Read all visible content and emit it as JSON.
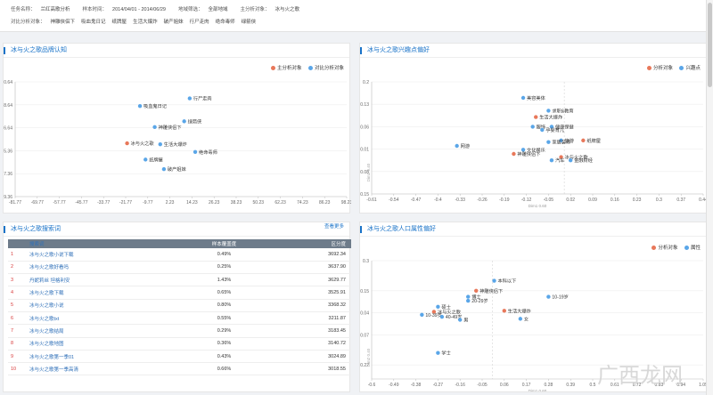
{
  "filters": {
    "row1": [
      {
        "label": "任务名称：",
        "value": "兰红高歌分析"
      },
      {
        "label": "样本时间：",
        "value": "2014/04/01 - 2014/06/29"
      },
      {
        "label": "地域筛选：",
        "value": "全部地域"
      },
      {
        "label": "主分析对象：",
        "value": "冰与火之歌"
      }
    ],
    "row2_label": "对比分析对象：",
    "row2": [
      "神雕侠侣下",
      "吸血鬼日记",
      "纸牌屋",
      "生活大爆炸",
      "破产姐妹",
      "行尸走肉",
      "绝命毒师",
      "绿箭侠"
    ]
  },
  "colors": {
    "main": "#e8785a",
    "compare": "#5aa6e8",
    "accent": "#1a73c8"
  },
  "panels": {
    "brand": {
      "title": "冰与火之歌品牌认知",
      "legend": [
        "主分析对象",
        "对比分析对象"
      ]
    },
    "interest": {
      "title": "冰与火之歌兴趣点偏好",
      "legend": [
        "分析对象",
        "兴趣点"
      ],
      "axis_label": "Dim1 0.60",
      "yaxis_label": "Dim2 0.40"
    },
    "search": {
      "title": "冰与火之歌搜索词",
      "more": "查看更多",
      "headers": [
        "",
        "搜索词",
        "样本覆盖度",
        "区分度"
      ],
      "rows": [
        {
          "idx": "1",
          "kw": "冰与火之歌小说下载",
          "pct": "0.49%",
          "val": "3692.34"
        },
        {
          "idx": "2",
          "kw": "冰与火之歌好看吗",
          "pct": "0.25%",
          "val": "3637.90"
        },
        {
          "idx": "3",
          "kw": "丹妮莉丝 坦格利安",
          "pct": "1.43%",
          "val": "3629.77"
        },
        {
          "idx": "4",
          "kw": "冰与火之歌下载",
          "pct": "0.65%",
          "val": "3525.91"
        },
        {
          "idx": "5",
          "kw": "冰与火之歌小说",
          "pct": "0.80%",
          "val": "3368.32"
        },
        {
          "idx": "6",
          "kw": "冰与火之歌txt",
          "pct": "0.55%",
          "val": "3211.87"
        },
        {
          "idx": "7",
          "kw": "冰与火之歌结局",
          "pct": "0.29%",
          "val": "3183.45"
        },
        {
          "idx": "8",
          "kw": "冰与火之歌地图",
          "pct": "0.36%",
          "val": "3140.72"
        },
        {
          "idx": "9",
          "kw": "冰与火之歌第一季01",
          "pct": "0.43%",
          "val": "3024.89"
        },
        {
          "idx": "10",
          "kw": "冰与火之歌第一季高清",
          "pct": "0.66%",
          "val": "3018.55"
        }
      ]
    },
    "demo": {
      "title": "冰与火之歌人口属性偏好",
      "legend": [
        "分析对象",
        "属性"
      ],
      "axis_label": "Dim1 0.60",
      "yaxis_label": "Dim2 0.40"
    }
  },
  "watermark": "广西龙网",
  "chart_data": [
    {
      "type": "scatter",
      "xlim": [
        -81.77,
        98.23
      ],
      "ylim": [
        -29.36,
        30.64
      ],
      "x_ticks": [
        "-81.77",
        "-69.77",
        "-57.77",
        "-45.77",
        "-33.77",
        "-21.77",
        "-9.77",
        "2.23",
        "14.23",
        "26.23",
        "38.23",
        "50.23",
        "62.23",
        "74.23",
        "86.23",
        "98.23"
      ],
      "y_ticks": [
        "30.64",
        "18.64",
        "6.64",
        "-5.36",
        "-17.36",
        "-29.36"
      ],
      "points": [
        {
          "label": "冰与火之歌",
          "x": -21,
          "y": -1.5,
          "group": "main"
        },
        {
          "label": "行尸走肉",
          "x": 13,
          "y": 22,
          "group": "compare"
        },
        {
          "label": "吸血鬼日记",
          "x": -14,
          "y": 18,
          "group": "compare"
        },
        {
          "label": "绿箭侠",
          "x": 10,
          "y": 10,
          "group": "compare"
        },
        {
          "label": "神雕侠侣下",
          "x": -6,
          "y": 7,
          "group": "compare"
        },
        {
          "label": "生活大爆炸",
          "x": -3,
          "y": -2,
          "group": "compare"
        },
        {
          "label": "绝命毒师",
          "x": 16,
          "y": -6,
          "group": "compare"
        },
        {
          "label": "纸牌屋",
          "x": -11,
          "y": -10,
          "group": "compare"
        },
        {
          "label": "破产姐妹",
          "x": -1,
          "y": -15,
          "group": "compare"
        }
      ]
    },
    {
      "type": "scatter",
      "xlim": [
        -0.61,
        0.44
      ],
      "ylim": [
        -0.15,
        0.2
      ],
      "x_ticks": [
        "-0.61",
        "-0.54",
        "-0.47",
        "-0.4",
        "-0.33",
        "-0.26",
        "-0.19",
        "-0.12",
        "-0.05",
        "0.02",
        "0.09",
        "0.16",
        "0.23",
        "0.3",
        "0.37",
        "0.44"
      ],
      "y_ticks": [
        "0.2",
        "0.13",
        "0.06",
        "-0.01",
        "-0.08",
        "-0.15"
      ],
      "points": [
        {
          "label": "美容美体",
          "x": -0.13,
          "y": 0.15,
          "group": "compare"
        },
        {
          "label": "求职&教育",
          "x": -0.05,
          "y": 0.11,
          "group": "compare"
        },
        {
          "label": "生活大爆炸",
          "x": -0.09,
          "y": 0.09,
          "group": "main"
        },
        {
          "label": "服饰",
          "x": -0.1,
          "y": 0.06,
          "group": "compare"
        },
        {
          "label": "健康保健",
          "x": -0.04,
          "y": 0.06,
          "group": "compare"
        },
        {
          "label": "孕婴育儿",
          "x": -0.07,
          "y": 0.05,
          "group": "compare"
        },
        {
          "label": "旅游",
          "x": -0.01,
          "y": 0.017,
          "group": "compare"
        },
        {
          "label": "纸牌屋",
          "x": 0.06,
          "y": 0.017,
          "group": "main"
        },
        {
          "label": "家居装修",
          "x": -0.05,
          "y": 0.012,
          "group": "compare"
        },
        {
          "label": "网游",
          "x": -0.34,
          "y": 0.0,
          "group": "compare"
        },
        {
          "label": "文化娱乐",
          "x": -0.13,
          "y": -0.012,
          "group": "compare"
        },
        {
          "label": "神雕侠侣下",
          "x": -0.16,
          "y": -0.025,
          "group": "main"
        },
        {
          "label": "冰与火之歌",
          "x": -0.01,
          "y": -0.035,
          "group": "main"
        },
        {
          "label": "金融财经",
          "x": 0.02,
          "y": -0.045,
          "group": "compare"
        },
        {
          "label": "汽车",
          "x": -0.04,
          "y": -0.045,
          "group": "compare"
        }
      ]
    },
    {
      "type": "scatter",
      "xlim": [
        -0.6,
        1.05
      ],
      "ylim": [
        -0.29,
        0.3
      ],
      "x_ticks": [
        "-0.6",
        "-0.49",
        "-0.38",
        "-0.27",
        "-0.16",
        "-0.05",
        "0.06",
        "0.17",
        "0.28",
        "0.39",
        "0.5",
        "0.61",
        "0.72",
        "0.83",
        "0.94",
        "1.05"
      ],
      "y_ticks": [
        "0.3",
        "0.15",
        "0.04",
        "-0.07",
        "-0.22"
      ],
      "points": [
        {
          "label": "本科以下",
          "x": 0.01,
          "y": 0.2,
          "group": "compare"
        },
        {
          "label": "神雕侠侣下",
          "x": -0.08,
          "y": 0.15,
          "group": "main"
        },
        {
          "label": "10-19岁",
          "x": 0.28,
          "y": 0.12,
          "group": "compare"
        },
        {
          "label": "博士",
          "x": -0.12,
          "y": 0.12,
          "group": "compare"
        },
        {
          "label": "20-29岁",
          "x": -0.12,
          "y": 0.1,
          "group": "compare"
        },
        {
          "label": "硕士",
          "x": -0.27,
          "y": 0.07,
          "group": "compare"
        },
        {
          "label": "生活大爆炸",
          "x": 0.06,
          "y": 0.05,
          "group": "main"
        },
        {
          "label": "冰与火之歌",
          "x": -0.29,
          "y": 0.045,
          "group": "main"
        },
        {
          "label": "10-39岁",
          "x": -0.35,
          "y": 0.03,
          "group": "compare"
        },
        {
          "label": "40-49岁",
          "x": -0.25,
          "y": 0.02,
          "group": "compare"
        },
        {
          "label": "女",
          "x": 0.14,
          "y": 0.01,
          "group": "compare"
        },
        {
          "label": "男",
          "x": -0.16,
          "y": 0.005,
          "group": "compare"
        },
        {
          "label": "学士",
          "x": -0.27,
          "y": -0.16,
          "group": "compare"
        }
      ]
    }
  ]
}
